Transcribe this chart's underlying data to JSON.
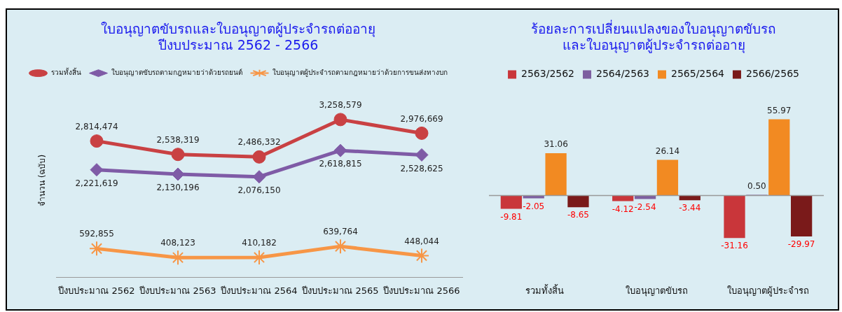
{
  "chart_data": [
    {
      "type": "line",
      "title": "ใบอนุญาตขับรถและใบอนุญาตผู้ประจำรถต่ออายุ\nปีงบประมาณ 2562 - 2566",
      "ylabel": "จำนวน (ฉบับ)",
      "categories": [
        "ปีงบประมาณ 2562",
        "ปีงบประมาณ 2563",
        "ปีงบประมาณ 2564",
        "ปีงบประมาณ 2565",
        "ปีงบประมาณ 2566"
      ],
      "series": [
        {
          "name": "รวมทั้งสิ้น",
          "color": "#c94143",
          "marker": "circle",
          "values": [
            2814474,
            2538319,
            2486332,
            3258579,
            2976669
          ],
          "value_labels": [
            "2,814,474",
            "2,538,319",
            "2,486,332",
            "3,258,579",
            "2,976,669"
          ]
        },
        {
          "name": "ใบอนุญาตขับรถตามกฎหมายว่าด้วยรถยนต์",
          "color": "#7f5ba6",
          "marker": "diamond",
          "values": [
            2221619,
            2130196,
            2076150,
            2618815,
            2528625
          ],
          "value_labels": [
            "2,221,619",
            "2,130,196",
            "2,076,150",
            "2,618,815",
            "2,528,625"
          ]
        },
        {
          "name": "ใบอนุญาตผู้ประจำรถตามกฎหมายว่าด้วยการขนส่งทางบก",
          "color": "#f79646",
          "marker": "cross",
          "values": [
            592855,
            408123,
            410182,
            639764,
            448044
          ],
          "value_labels": [
            "592,855",
            "408,123",
            "410,182",
            "639,764",
            "448,044"
          ]
        }
      ],
      "legend": "top",
      "tick_labels": "x",
      "grid": false
    },
    {
      "type": "bar",
      "title": "ร้อยละการเปลี่ยนแปลงของใบอนุญาตขับรถ\nและใบอนุญาตผู้ประจำรถต่ออายุ",
      "categories": [
        "รวมทั้งสิ้น",
        "ใบอนุญาตขับรถ",
        "ใบอนุญาตผู้ประจำรถ"
      ],
      "series": [
        {
          "name": "2563/2562",
          "color": "#c9363a",
          "values": [
            -9.81,
            -4.12,
            -31.16
          ],
          "value_labels": [
            "-9.81",
            "-4.12",
            "-31.16"
          ]
        },
        {
          "name": "2564/2563",
          "color": "#7d5fa0",
          "values": [
            -2.05,
            -2.54,
            0.5
          ],
          "value_labels": [
            "-2.05",
            "-2.54",
            "0.50"
          ]
        },
        {
          "name": "2565/2564",
          "color": "#f28a22",
          "values": [
            31.06,
            26.14,
            55.97
          ],
          "value_labels": [
            "31.06",
            "26.14",
            "55.97"
          ]
        },
        {
          "name": "2566/2565",
          "color": "#7a1a1a",
          "values": [
            -8.65,
            -3.44,
            -29.97
          ],
          "value_labels": [
            "-8.65",
            "-3.44",
            "-29.97"
          ]
        }
      ],
      "legend": "top",
      "tick_labels": "x",
      "grid": false
    }
  ]
}
